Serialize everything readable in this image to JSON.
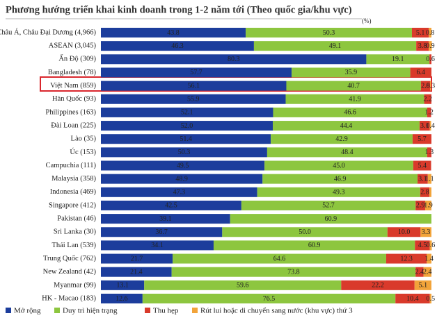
{
  "chart_data": {
    "type": "stacked-bar-horizontal",
    "title": "Phương hướng triển khai kinh doanh trong 1-2 năm tới (Theo quốc gia/khu vực)",
    "unit_label": "(%)",
    "xlim": [
      0,
      100
    ],
    "categories": [
      "Châu Á, Châu Đại Dương (4,966)",
      "ASEAN (3,045)",
      "Ấn Độ (309)",
      "Bangladesh (78)",
      "Việt Nam (859)",
      "Hàn Quốc (93)",
      "Philippines (163)",
      "Đài Loan (225)",
      "Lào (35)",
      "Úc (153)",
      "Campuchia (111)",
      "Malaysia (358)",
      "Indonesia (469)",
      "Singapore (412)",
      "Pakistan (46)",
      "Sri Lanka (30)",
      "Thái Lan (539)",
      "Trung Quốc (762)",
      "New Zealand (42)",
      "Myanmar (99)",
      "HK - Macao (183)"
    ],
    "series": [
      {
        "name": "Mở rộng",
        "color": "#1c3d9c",
        "values": [
          43.8,
          46.3,
          80.3,
          57.7,
          56.1,
          55.9,
          52.1,
          52.0,
          51.4,
          50.3,
          49.5,
          48.9,
          47.3,
          42.5,
          39.1,
          36.7,
          34.1,
          21.7,
          21.4,
          13.1,
          12.6
        ],
        "value_labels": [
          "43.8",
          "46.3",
          "80.3",
          "57.7",
          "56.1",
          "55.9",
          "52.1",
          "52.0",
          "51.4",
          "50.3",
          "49.5",
          "48.9",
          "47.3",
          "42.5",
          "39.1",
          "36.7",
          "34.1",
          "21.7",
          "21.4",
          "13.1",
          "12.6"
        ]
      },
      {
        "name": "Duy trì hiện trạng",
        "color": "#8dc63f",
        "values": [
          50.3,
          49.1,
          19.1,
          35.9,
          40.7,
          41.9,
          46.6,
          44.4,
          42.9,
          48.4,
          45.0,
          46.9,
          49.3,
          52.7,
          60.9,
          50.0,
          60.9,
          64.6,
          73.8,
          59.6,
          76.5
        ],
        "value_labels": [
          "50.3",
          "49.1",
          "19.1",
          "35.9",
          "40.7",
          "41.9",
          "46.6",
          "44.4",
          "42.9",
          "48.4",
          "45.0",
          "46.9",
          "49.3",
          "52.7",
          "60.9",
          "50.0",
          "60.9",
          "64.6",
          "73.8",
          "59.6",
          "76.5"
        ]
      },
      {
        "name": "Thu hẹp",
        "color": "#d93a2b",
        "values": [
          5.1,
          3.8,
          0.6,
          6.4,
          2.8,
          2.2,
          1.2,
          3.1,
          5.7,
          1.3,
          5.4,
          3.1,
          2.8,
          2.9,
          0,
          10.0,
          4.5,
          12.3,
          2.4,
          22.2,
          10.4
        ],
        "value_labels": [
          "5.1",
          "3.8",
          "0.6",
          "6.4",
          "2.8",
          "2.2",
          "1.2",
          "3.1",
          "5.7",
          "1.3",
          "5.4",
          "3.1",
          "2.8",
          "2.9",
          null,
          "10.0",
          "4.5",
          "12.3",
          "2.4",
          "22.2",
          "10.4"
        ]
      },
      {
        "name": "Rút lui hoặc di chuyển sang nước (khu vực) thứ 3",
        "color": "#f2a43a",
        "values": [
          0.8,
          0.9,
          0,
          0,
          0.3,
          0,
          0,
          0.4,
          0,
          0,
          0,
          1.1,
          0.6,
          1.9,
          0,
          3.3,
          0.6,
          1.4,
          2.4,
          5.1,
          0.5
        ],
        "value_labels": [
          "0.8",
          "0.9",
          null,
          null,
          "0.3",
          null,
          null,
          "0.4",
          null,
          null,
          null,
          "1.1",
          null,
          "1.9",
          null,
          "3.3",
          "0.6",
          "1.4",
          "2.4",
          "5.1",
          "0.5"
        ]
      }
    ]
  }
}
